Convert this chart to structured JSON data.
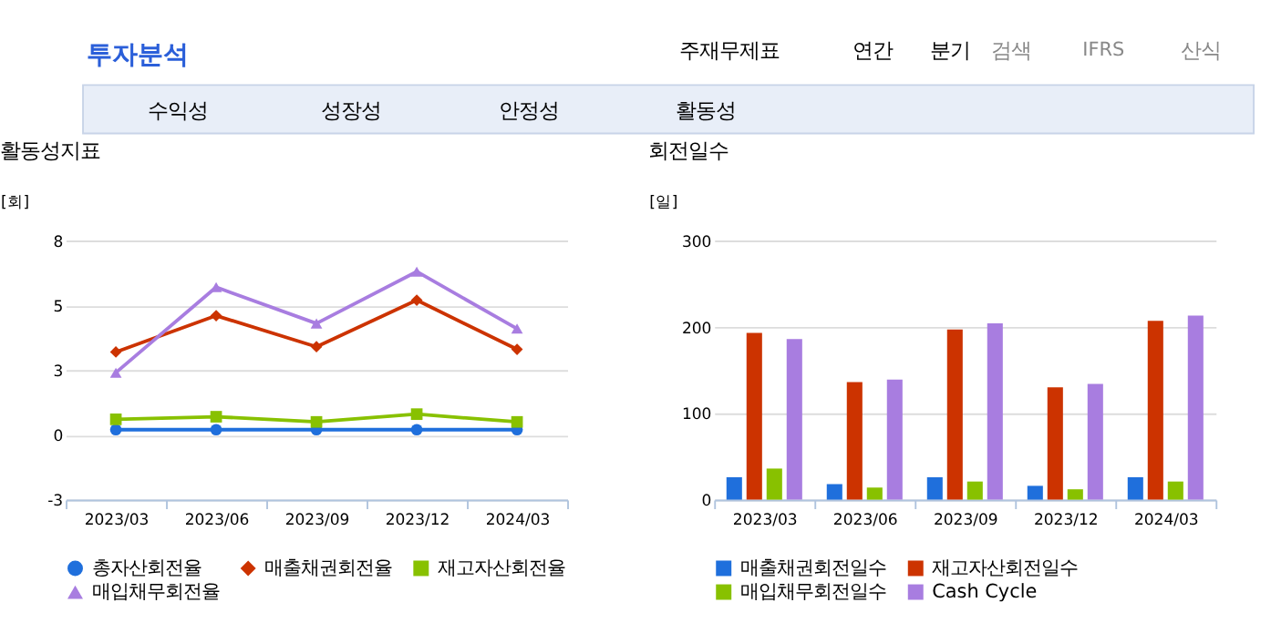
{
  "chart_data": [
    {
      "type": "line",
      "title": "활동성지표",
      "ylabel": "[회]",
      "annotations": [
        "투자분석",
        "주재무제표",
        "연간",
        "분기",
        "검색",
        "IFRS",
        "산식",
        "수익성",
        "성장성",
        "안정성",
        "활동성"
      ],
      "categories": [
        "2023/03",
        "2023/06",
        "2023/09",
        "2023/12",
        "2024/03"
      ],
      "series": [
        {
          "name": "총자산회전율",
          "color": "#1f6fdc",
          "marker": "circle",
          "values": [
            0.2,
            0.2,
            0.2,
            0.2,
            0.2
          ]
        },
        {
          "name": "매출채권회전율",
          "color": "#cc3300",
          "marker": "diamond",
          "values": [
            3.2,
            4.6,
            3.4,
            5.2,
            3.3
          ]
        },
        {
          "name": "재고자산회전율",
          "color": "#88c100",
          "marker": "square",
          "values": [
            0.6,
            0.7,
            0.5,
            0.8,
            0.5
          ]
        },
        {
          "name": "매입채무회전율",
          "color": "#a87de0",
          "marker": "triangle",
          "values": [
            2.4,
            5.7,
            4.3,
            6.3,
            4.1
          ]
        }
      ],
      "ylim": [
        -2.5,
        7.5
      ],
      "yticks": [
        {
          "value": -2.5,
          "label": "-3"
        },
        0,
        {
          "value": 2.5,
          "label": "3"
        },
        5,
        {
          "value": 7.5,
          "label": "8"
        }
      ],
      "grid": "y",
      "legend": "bottom",
      "line_style": "solid"
    },
    {
      "type": "bar",
      "title": "회전일수",
      "ylabel": "[일]",
      "categories": [
        "2023/03",
        "2023/06",
        "2023/09",
        "2023/12",
        "2024/03"
      ],
      "series": [
        {
          "name": "매출채권회전일수",
          "color": "#1f6fdc",
          "values": [
            26,
            18,
            26,
            16,
            26
          ]
        },
        {
          "name": "재고자산회전일수",
          "color": "#cc3300",
          "values": [
            193,
            136,
            197,
            130,
            207
          ]
        },
        {
          "name": "매입채무회전일수",
          "color": "#88c100",
          "values": [
            36,
            14,
            21,
            12,
            21
          ]
        },
        {
          "name": "Cash Cycle",
          "color": "#a87de0",
          "values": [
            186,
            139,
            204,
            134,
            213
          ]
        }
      ],
      "ylim": [
        0,
        300
      ],
      "yticks": [
        0,
        100,
        200,
        300
      ],
      "grid": "y",
      "legend": "bottom"
    }
  ]
}
